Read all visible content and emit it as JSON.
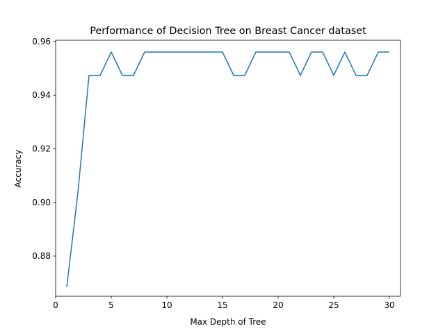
{
  "chart_data": {
    "type": "line",
    "title": "Performance of Decision Tree on Breast Cancer dataset",
    "xlabel": "Max Depth of Tree",
    "ylabel": "Accuracy",
    "xlim": [
      0,
      31
    ],
    "ylim": [
      0.865,
      0.9605
    ],
    "xticks": [
      0,
      5,
      10,
      15,
      20,
      25,
      30
    ],
    "yticks": [
      0.88,
      0.9,
      0.92,
      0.94,
      0.96
    ],
    "xtick_labels": [
      "0",
      "5",
      "10",
      "15",
      "20",
      "25",
      "30"
    ],
    "ytick_labels": [
      "0.88",
      "0.90",
      "0.92",
      "0.94",
      "0.96"
    ],
    "grid": false,
    "series": [
      {
        "color": "#1f77b4",
        "x": [
          1,
          2,
          3,
          4,
          5,
          6,
          7,
          8,
          9,
          10,
          11,
          12,
          13,
          14,
          15,
          16,
          17,
          18,
          19,
          20,
          21,
          22,
          23,
          24,
          25,
          26,
          27,
          28,
          29,
          30
        ],
        "y": [
          0.8684,
          0.9035,
          0.9474,
          0.9474,
          0.9561,
          0.9474,
          0.9474,
          0.9561,
          0.9561,
          0.9561,
          0.9561,
          0.9561,
          0.9561,
          0.9561,
          0.9561,
          0.9474,
          0.9474,
          0.9561,
          0.9561,
          0.9561,
          0.9561,
          0.9474,
          0.9561,
          0.9561,
          0.9474,
          0.9561,
          0.9474,
          0.9474,
          0.9561,
          0.9561
        ]
      }
    ]
  }
}
